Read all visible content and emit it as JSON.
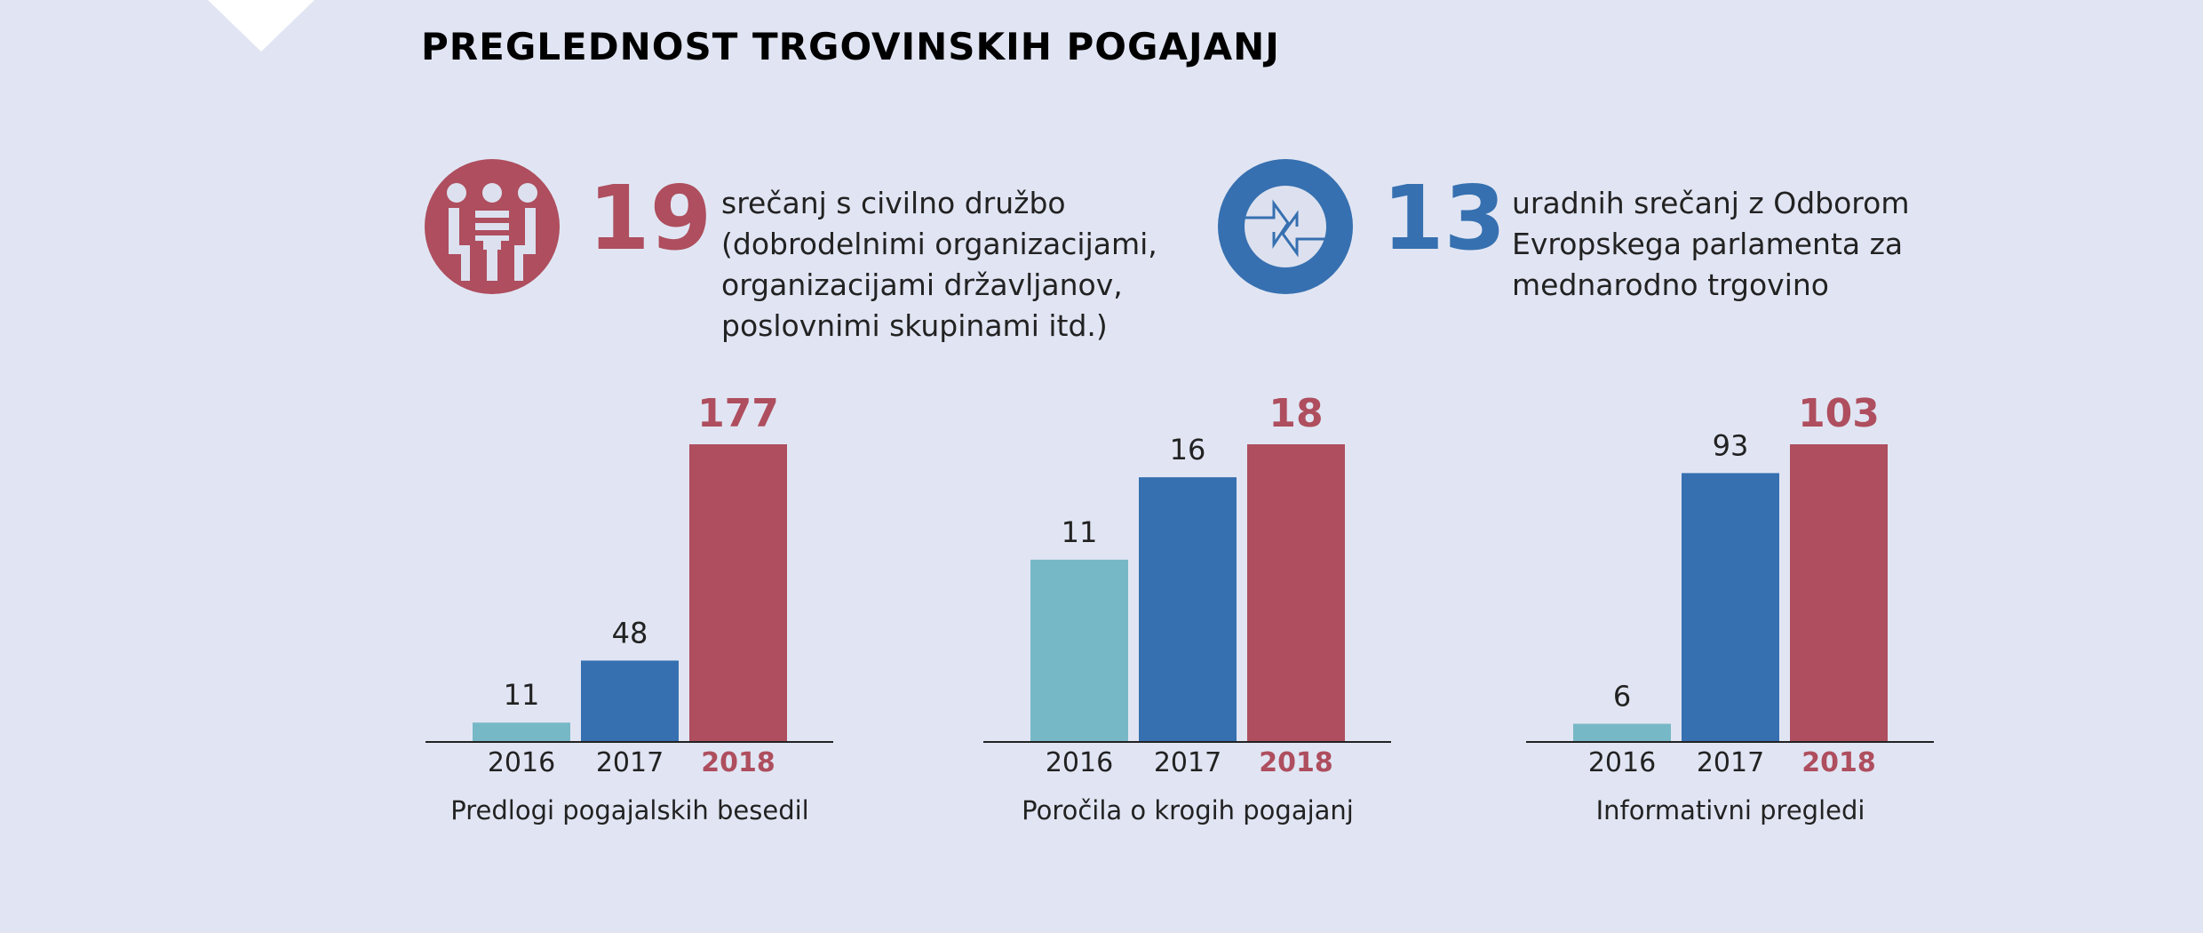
{
  "title": "PREGLEDNOST TRGOVINSKIH POGAJANJ",
  "stats": [
    {
      "number": "19",
      "icon": "meeting-people-icon",
      "color": "#ae4e5e",
      "lines": [
        "srečanj s civilno družbo",
        "(dobrodelnimi organizacijami,",
        "organizacijami državljanov,",
        "poslovnimi skupinami itd.)"
      ]
    },
    {
      "number": "13",
      "icon": "exchange-arrows-icon",
      "color": "#3670b0",
      "lines": [
        "uradnih srečanj z Odborom",
        "Evropskega parlamenta za",
        "mednarodno trgovino"
      ]
    }
  ],
  "colors": {
    "background": "#e1e5f3",
    "2016": "#77b8c6",
    "2017": "#3670b0",
    "2018": "#ae4e5e"
  },
  "chart_data": [
    {
      "type": "bar",
      "xlabel": "Predlogi pogajalskih besedil",
      "categories": [
        "2016",
        "2017",
        "2018"
      ],
      "values": [
        11,
        48,
        177
      ],
      "grid": false
    },
    {
      "type": "bar",
      "xlabel": "Poročila o krogih pogajanj",
      "categories": [
        "2016",
        "2017",
        "2018"
      ],
      "values": [
        11,
        16,
        18
      ],
      "grid": false
    },
    {
      "type": "bar",
      "xlabel": "Informativni pregledi",
      "categories": [
        "2016",
        "2017",
        "2018"
      ],
      "values": [
        6,
        93,
        103
      ],
      "grid": false
    }
  ]
}
